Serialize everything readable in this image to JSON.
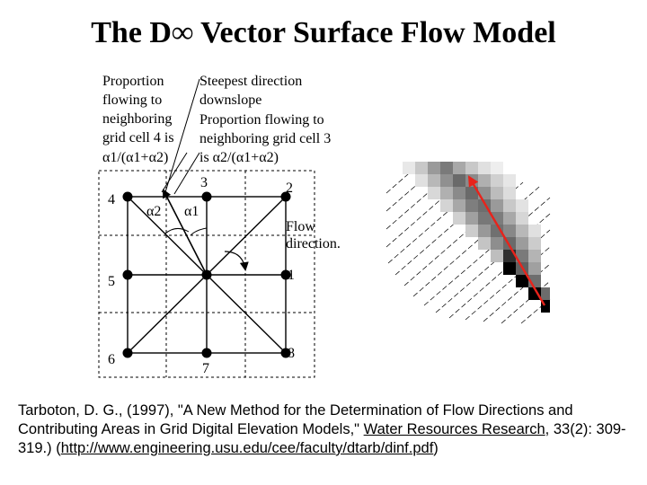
{
  "title": "The D∞ Vector Surface Flow Model",
  "annotations": {
    "proportion_cell4": [
      "Proportion",
      "flowing to",
      "neighboring",
      "grid cell 4 is",
      "α1/(α1+α2)"
    ],
    "steepest": [
      "Steepest direction",
      "downslope"
    ],
    "proportion_cell3": [
      "Proportion flowing to",
      "neighboring grid cell 3",
      "is α2/(α1+α2)"
    ],
    "flow_direction": [
      "Flow",
      "direction."
    ]
  },
  "angles": {
    "alpha1": "α1",
    "alpha2": "α2"
  },
  "cells": [
    {
      "id": "1",
      "label": "1"
    },
    {
      "id": "2",
      "label": "2"
    },
    {
      "id": "3",
      "label": "3"
    },
    {
      "id": "4",
      "label": "4"
    },
    {
      "id": "5",
      "label": "5"
    },
    {
      "id": "6",
      "label": "6"
    },
    {
      "id": "7",
      "label": "7"
    },
    {
      "id": "8",
      "label": "8"
    }
  ],
  "colors": {
    "flow_arrow": "#e8231b",
    "node": "#000000",
    "grid_dash": "#000000"
  },
  "citation": {
    "part1": "Tarboton, D. G., (1997), \"A New Method for the Determination of Flow Directions and Contributing Areas in Grid Digital Elevation Models,\" ",
    "journal": "Water Resources Research",
    "part2": ", 33(2): 309-319.) (",
    "url": "http://www.engineering.usu.edu/cee/faculty/dtarb/dinf.pdf",
    "part3": ")"
  }
}
